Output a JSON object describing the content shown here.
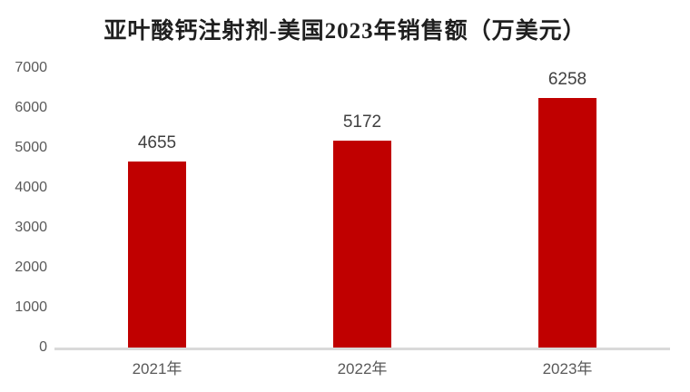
{
  "chart_data": {
    "type": "bar",
    "title": "亚叶酸钙注射剂-美国2023年销售额（万美元）",
    "categories": [
      "2021年",
      "2022年",
      "2023年"
    ],
    "values": [
      4655,
      5172,
      6258
    ],
    "data_labels": [
      "4655",
      "5172",
      "6258"
    ],
    "xlabel": "",
    "ylabel": "",
    "ylim": [
      0,
      7000
    ],
    "yticks": [
      0,
      1000,
      2000,
      3000,
      4000,
      5000,
      6000,
      7000
    ],
    "grid": false,
    "legend_position": "none",
    "colors": {
      "bar": "#c00000",
      "axis_line": "#d9d9d9",
      "tick_label": "#595959",
      "data_label": "#404040",
      "title": "#1f1f1f",
      "background": "#ffffff"
    }
  }
}
